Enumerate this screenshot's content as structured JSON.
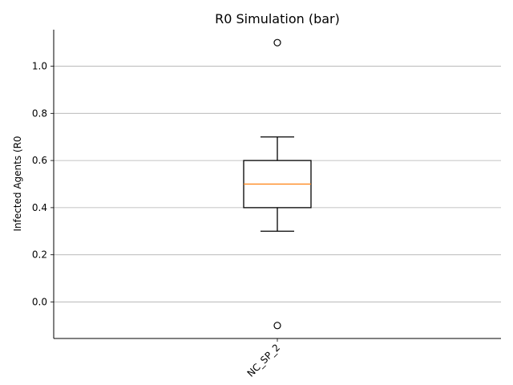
{
  "chart_data": {
    "type": "box",
    "title": "R0 Simulation (bar)",
    "xlabel": "",
    "ylabel": "Infected Agents (R0",
    "categories": [
      "NC_SP_2"
    ],
    "boxes": [
      {
        "category": "NC_SP_2",
        "whisker_low": 0.3,
        "q1": 0.4,
        "median": 0.5,
        "q3": 0.6,
        "whisker_high": 0.7,
        "outliers": [
          1.1,
          -0.1
        ]
      }
    ],
    "yticks": [
      0.0,
      0.2,
      0.4,
      0.6,
      0.8,
      1.0
    ],
    "ytick_labels": [
      "0.0",
      "0.2",
      "0.4",
      "0.6",
      "0.8",
      "1.0"
    ],
    "ylim": [
      -0.155,
      1.155
    ],
    "grid": "horizontal",
    "colors": {
      "box": "#000000",
      "median": "#ff7f0e",
      "grid": "#b0b0b0"
    }
  }
}
